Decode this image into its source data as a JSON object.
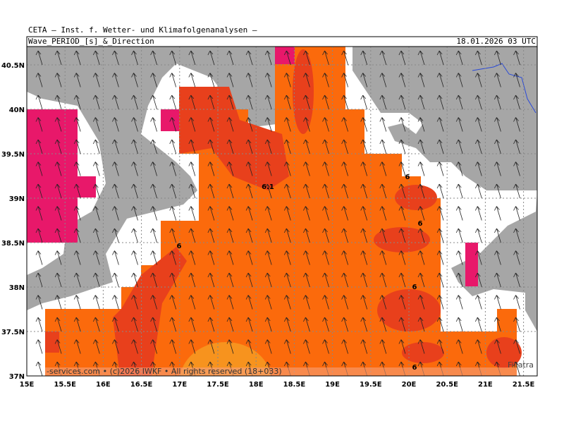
{
  "header": {
    "title": "CETA – Inst. f. Wetter- und Klimafolgenanalysen –",
    "variable": "Wave_PERIOD_[s]_&_Direction",
    "date": "18.01.2026 03 UTC"
  },
  "map": {
    "x_labels": [
      "15E",
      "15.5E",
      "16E",
      "16.5E",
      "17E",
      "17.5E",
      "18E",
      "18.5E",
      "19E",
      "19.5E",
      "20E",
      "20.5E",
      "21E",
      "21.5E"
    ],
    "y_labels": [
      "37N",
      "37.5N",
      "38N",
      "38.5N",
      "39N",
      "39.5N",
      "40N",
      "40.5N"
    ],
    "contour_labels": [
      "6.1",
      "6",
      "6",
      "6",
      "6",
      "6"
    ],
    "place_labels": [
      "Filiatra"
    ],
    "footer": "-services.com • (c)2026 IWKF • All rights reserved (18+033)"
  }
}
